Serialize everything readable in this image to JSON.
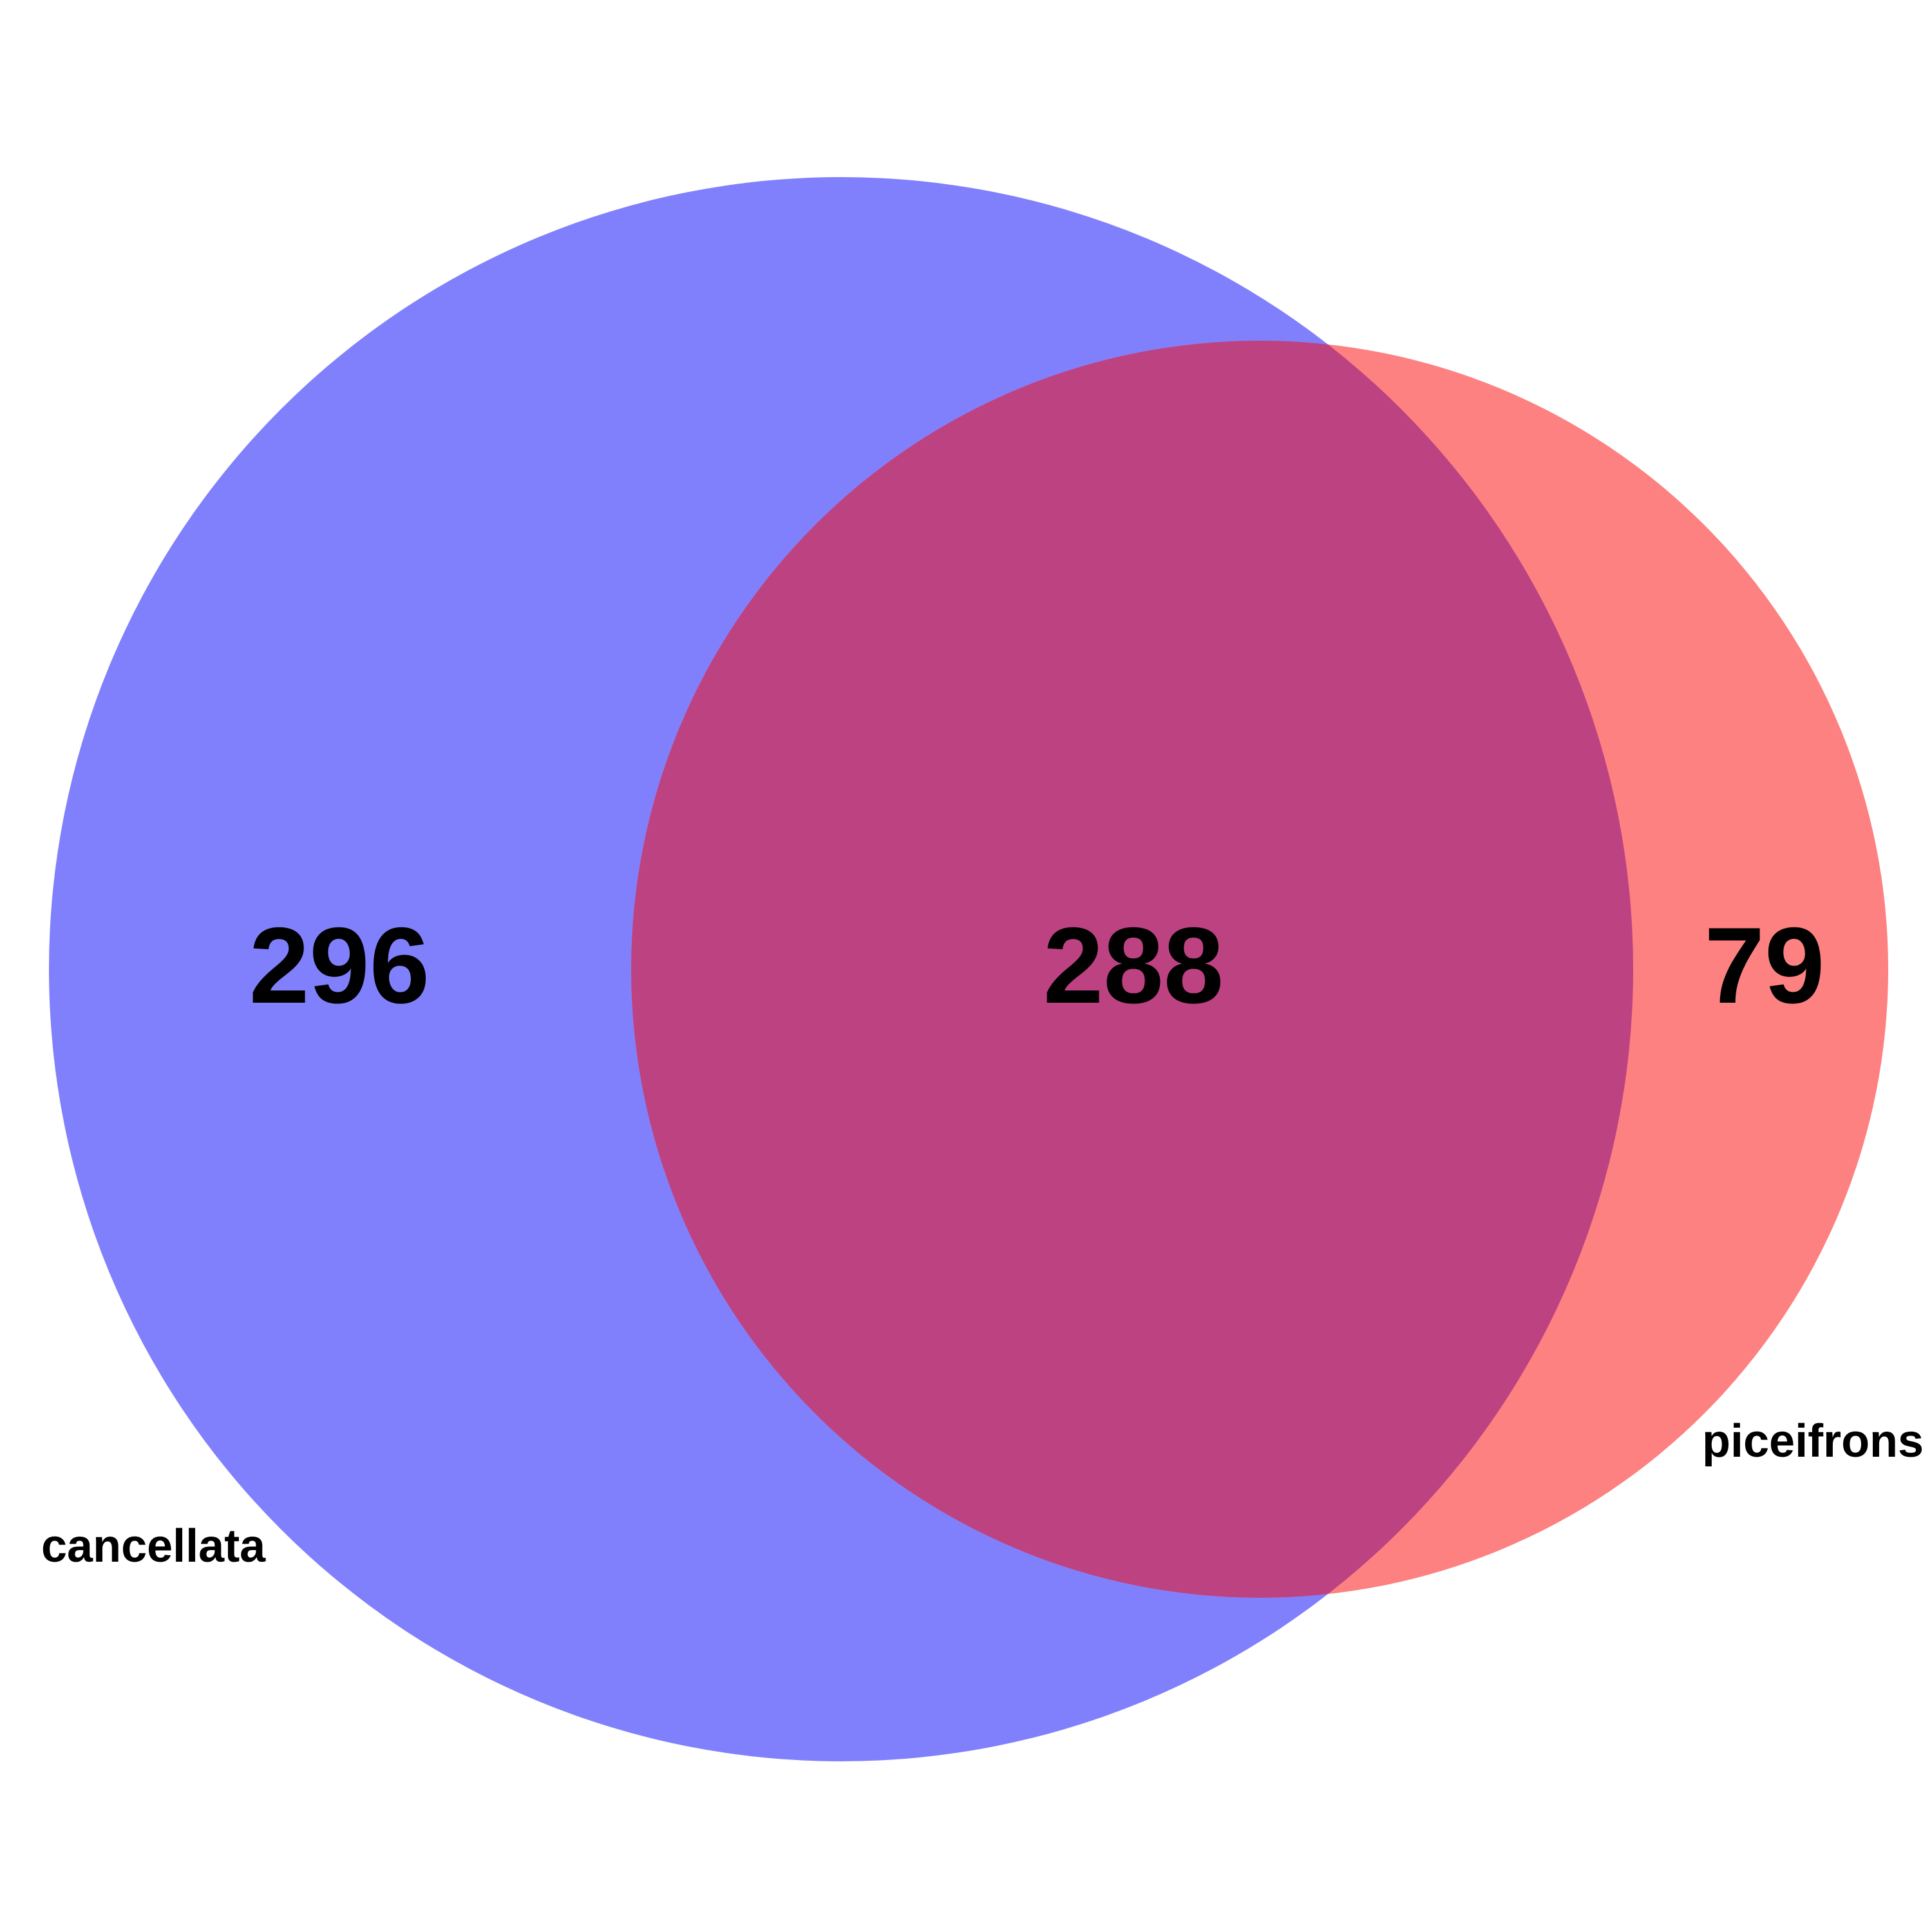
{
  "venn": {
    "sets": [
      {
        "name": "cancellata",
        "color": "#8080fd"
      },
      {
        "name": "piceifrons",
        "color": "#fd8181"
      }
    ],
    "overlap_color": "#bd4282",
    "regions": {
      "cancellata_only": "296",
      "intersection": "288",
      "piceifrons_only": "79"
    }
  }
}
